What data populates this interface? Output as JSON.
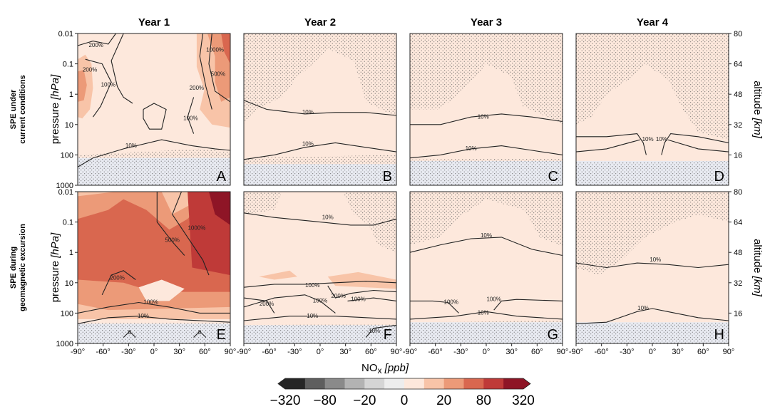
{
  "chart_data": {
    "type": "heatmap",
    "columns": [
      "Year 1",
      "Year 2",
      "Year 3",
      "Year 4"
    ],
    "rows": [
      [
        "SPE under",
        "current conditions"
      ],
      [
        "SPE during",
        "geomagnetic excursion"
      ]
    ],
    "x_ticks": [
      "-90°",
      "-60°",
      "-30°",
      "0°",
      "30°",
      "60°",
      "90°"
    ],
    "x_tick_values": [
      -90,
      -60,
      -30,
      0,
      30,
      60,
      90
    ],
    "y_ticks_left": [
      "0.01",
      "0.1",
      "1",
      "10",
      "100",
      "1000"
    ],
    "y_tick_values_left": [
      0.01,
      0.1,
      1,
      10,
      100,
      1000
    ],
    "y_ticks_right": [
      "80",
      "64",
      "48",
      "32",
      "16"
    ],
    "y_tick_values_right": [
      80,
      64,
      48,
      32,
      16
    ],
    "ylabel_left": [
      "pressure ",
      "[hPa]"
    ],
    "ylabel_right": [
      "altitude ",
      "[km]"
    ],
    "colorbar_label": [
      "NO",
      "x",
      " [ppb]"
    ],
    "colorbar_levels": [
      -320,
      -160,
      -80,
      -40,
      -20,
      -10,
      0,
      10,
      20,
      40,
      80,
      160,
      320
    ],
    "colorbar_tick_labels": [
      "−320",
      "−80",
      "−20",
      "0",
      "20",
      "80",
      "320"
    ],
    "colorbar_tick_values": [
      -320,
      -80,
      -20,
      0,
      20,
      80,
      320
    ],
    "colorbar_colors": [
      "#262626",
      "#5e5e5e",
      "#8a8a8a",
      "#b3b3b3",
      "#d5d5d5",
      "#ededed",
      "#fde8dc",
      "#f8c4a8",
      "#ec9a78",
      "#d9674f",
      "#bf3a38",
      "#8e1526"
    ],
    "panels": [
      {
        "letter": "A",
        "contours": [
          "200%",
          "200%",
          "100%",
          "1000%",
          "500%",
          "200%",
          "100%",
          "10%"
        ]
      },
      {
        "letter": "B",
        "contours": [
          "10%",
          "10%"
        ]
      },
      {
        "letter": "C",
        "contours": [
          "10%",
          "10%"
        ]
      },
      {
        "letter": "D",
        "contours": [
          "10%",
          "10%"
        ]
      },
      {
        "letter": "E",
        "contours": [
          "1000%",
          "500%",
          "200%",
          "100%",
          "10%",
          "0",
          "0"
        ]
      },
      {
        "letter": "F",
        "contours": [
          "10%",
          "100%",
          "200%",
          "100%",
          "200%",
          "100%",
          "10%",
          "-10%"
        ]
      },
      {
        "letter": "G",
        "contours": [
          "10%",
          "100%",
          "100%",
          "10%"
        ]
      },
      {
        "letter": "H",
        "contours": [
          "10%",
          "10%"
        ]
      }
    ]
  }
}
